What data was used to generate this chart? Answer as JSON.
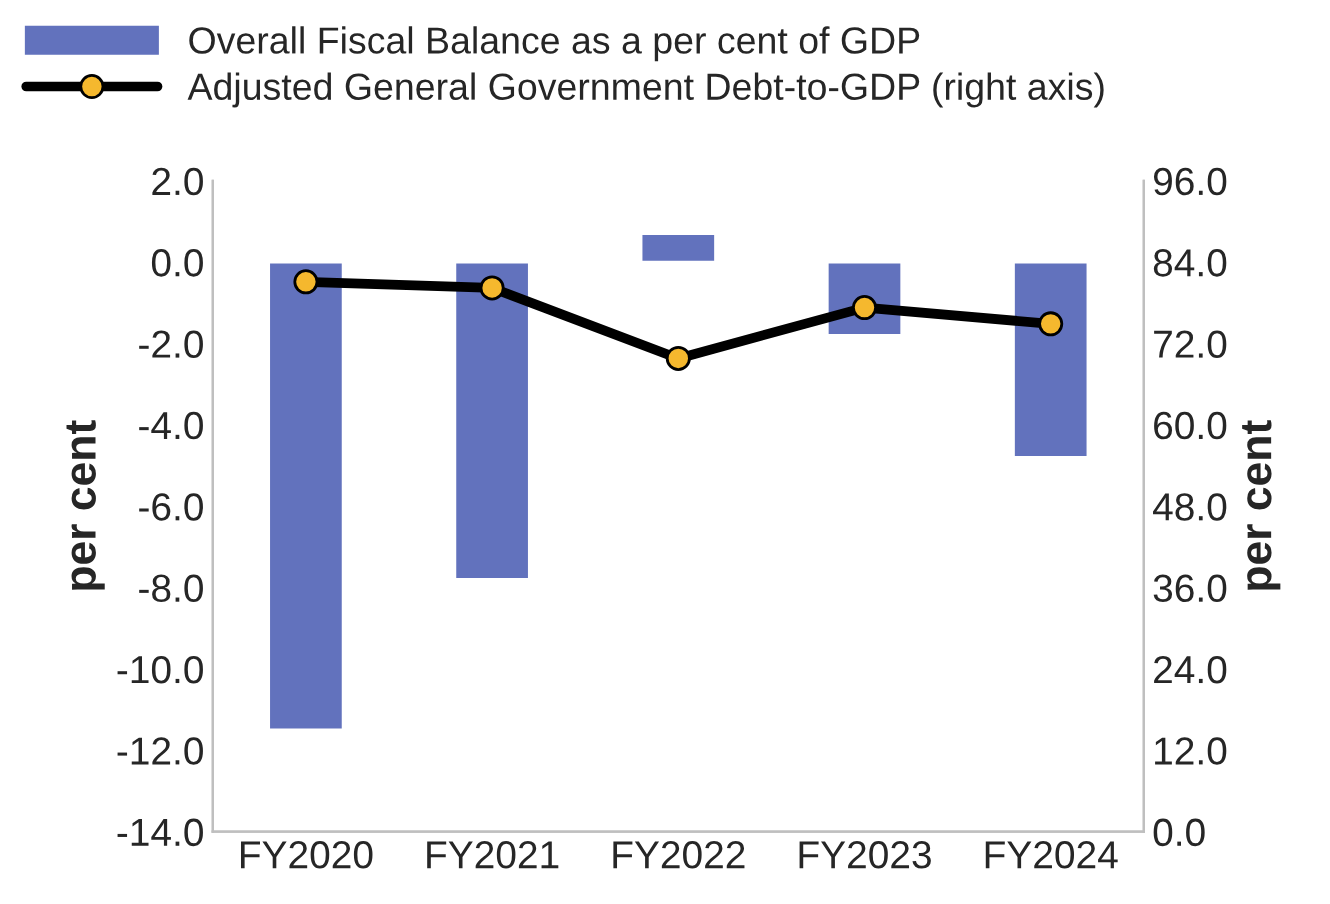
{
  "chart_data": {
    "type": "bar",
    "categories": [
      "FY2020",
      "FY2021",
      "FY2022",
      "FY2023",
      "FY2024"
    ],
    "ylabel": "per cent",
    "y2label": "per cent",
    "series": [
      {
        "name": "Overall Fiscal Balance as a per cent of GDP",
        "color": "#6272bd",
        "values": [
          -11.5,
          -7.8,
          0.7,
          -1.8,
          -4.8
        ]
      },
      {
        "name": "Adjusted General Government Debt-to-GDP (right axis)",
        "type": "line",
        "axis": "y2",
        "color": "#000000",
        "values": [
          81.1,
          80.2,
          69.8,
          77.3,
          74.9
        ]
      }
    ],
    "ylim": [
      -14,
      2
    ],
    "yticks": [
      {
        "value": 2,
        "label": "2.0"
      },
      {
        "value": 0,
        "label": "0.0"
      },
      {
        "value": -2,
        "label": "-2.0"
      },
      {
        "value": -4,
        "label": "-4.0"
      },
      {
        "value": -6,
        "label": "-6.0"
      },
      {
        "value": -8,
        "label": "-8.0"
      },
      {
        "value": -10,
        "label": "-10.0"
      },
      {
        "value": -12,
        "label": "-12.0"
      },
      {
        "value": -14,
        "label": "-14.0"
      }
    ],
    "y2lim": [
      0,
      96
    ],
    "y2ticks": [
      {
        "value": 0,
        "label": "0.0"
      },
      {
        "value": 12,
        "label": "12.0"
      },
      {
        "value": 24,
        "label": "24.0"
      },
      {
        "value": 36,
        "label": "36.0"
      },
      {
        "value": 48,
        "label": "48.0"
      },
      {
        "value": 60,
        "label": "60.0"
      },
      {
        "value": 72,
        "label": "72.0"
      },
      {
        "value": 84,
        "label": "84.0"
      },
      {
        "value": 96,
        "label": "96.0"
      }
    ],
    "legend": "top",
    "marker": "circle",
    "grid": false
  }
}
